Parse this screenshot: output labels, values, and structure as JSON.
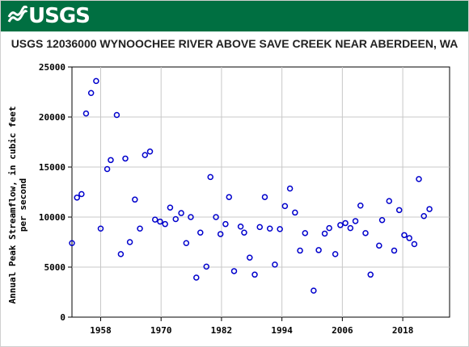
{
  "header": {
    "logo_text": "USGS",
    "title": "USGS 12036000 WYNOOCHEE RIVER ABOVE SAVE CREEK NEAR ABERDEEN, WA"
  },
  "colors": {
    "banner": "#006f41",
    "marker": "#0000cc",
    "grid": "#c8c8c8"
  },
  "chart_data": {
    "type": "scatter",
    "ylabel_line1": "Annual Peak Streamflow, in cubic feet",
    "ylabel_line2": "per second",
    "xlabel": "",
    "xlim": [
      1952.3,
      2027.3
    ],
    "ylim": [
      0,
      25000
    ],
    "x_ticks": [
      1958,
      1970,
      1982,
      1994,
      2006,
      2018
    ],
    "y_ticks": [
      0,
      5000,
      10000,
      15000,
      20000,
      25000
    ],
    "grid": true,
    "series": [
      {
        "marker": "open-circle",
        "points": [
          [
            1952.3,
            7400
          ],
          [
            1953.3,
            11950
          ],
          [
            1954.2,
            12300
          ],
          [
            1955.1,
            20350
          ],
          [
            1956.1,
            22400
          ],
          [
            1957.1,
            23600
          ],
          [
            1958.0,
            8850
          ],
          [
            1959.3,
            14800
          ],
          [
            1960.0,
            15700
          ],
          [
            1961.2,
            20200
          ],
          [
            1962.0,
            6300
          ],
          [
            1962.9,
            15850
          ],
          [
            1963.8,
            7500
          ],
          [
            1964.8,
            11750
          ],
          [
            1965.8,
            8850
          ],
          [
            1966.8,
            16200
          ],
          [
            1967.8,
            16550
          ],
          [
            1968.8,
            9750
          ],
          [
            1969.8,
            9550
          ],
          [
            1970.8,
            9300
          ],
          [
            1971.8,
            10950
          ],
          [
            1972.9,
            9800
          ],
          [
            1974.0,
            10400
          ],
          [
            1975.0,
            7400
          ],
          [
            1975.9,
            10000
          ],
          [
            1977.0,
            3950
          ],
          [
            1977.8,
            8450
          ],
          [
            1979.0,
            5050
          ],
          [
            1979.8,
            14000
          ],
          [
            1980.9,
            10000
          ],
          [
            1981.8,
            8300
          ],
          [
            1982.8,
            9300
          ],
          [
            1983.5,
            12000
          ],
          [
            1984.5,
            4600
          ],
          [
            1985.8,
            9050
          ],
          [
            1986.5,
            8450
          ],
          [
            1987.6,
            5950
          ],
          [
            1988.6,
            4250
          ],
          [
            1989.6,
            9000
          ],
          [
            1990.6,
            12000
          ],
          [
            1991.6,
            8850
          ],
          [
            1992.6,
            5250
          ],
          [
            1993.6,
            8800
          ],
          [
            1994.6,
            11100
          ],
          [
            1995.6,
            12850
          ],
          [
            1996.6,
            10450
          ],
          [
            1997.6,
            6650
          ],
          [
            1998.6,
            8400
          ],
          [
            2000.3,
            2650
          ],
          [
            2001.3,
            6700
          ],
          [
            2002.5,
            8350
          ],
          [
            2003.4,
            8900
          ],
          [
            2004.6,
            6300
          ],
          [
            2005.6,
            9200
          ],
          [
            2006.6,
            9400
          ],
          [
            2007.6,
            8900
          ],
          [
            2008.6,
            9600
          ],
          [
            2009.6,
            11150
          ],
          [
            2010.6,
            8400
          ],
          [
            2011.6,
            4250
          ],
          [
            2013.3,
            7150
          ],
          [
            2013.9,
            9700
          ],
          [
            2015.3,
            11600
          ],
          [
            2016.3,
            6650
          ],
          [
            2017.3,
            10700
          ],
          [
            2018.3,
            8200
          ],
          [
            2019.3,
            7900
          ],
          [
            2020.3,
            7300
          ],
          [
            2021.2,
            13800
          ],
          [
            2022.2,
            10100
          ],
          [
            2023.3,
            10800
          ]
        ]
      }
    ]
  }
}
